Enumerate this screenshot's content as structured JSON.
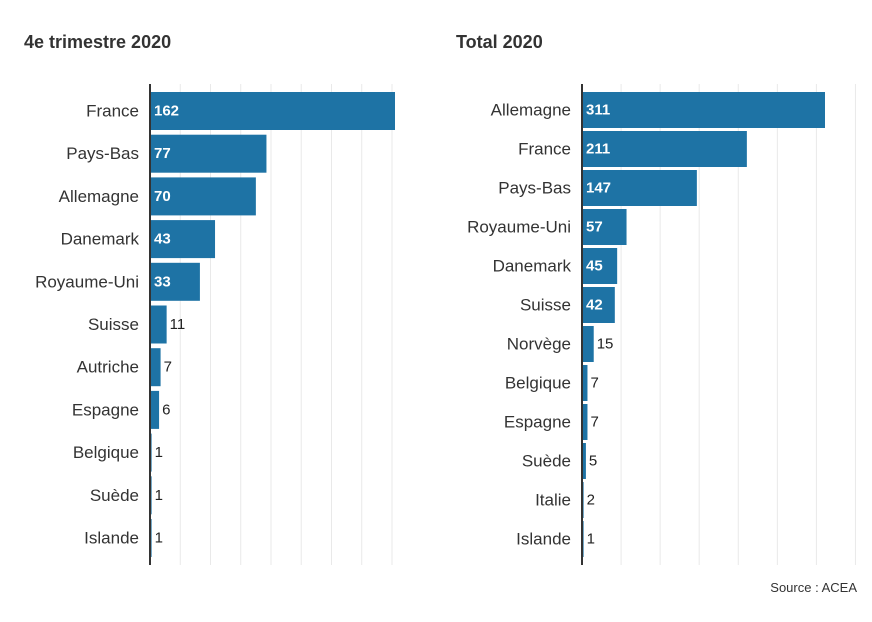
{
  "source": "Source : ACEA",
  "bar_color": "#1e73a5",
  "chart_data": [
    {
      "type": "bar",
      "orientation": "horizontal",
      "title": "4e trimestre 2020",
      "categories": [
        "France",
        "Pays-Bas",
        "Allemagne",
        "Danemark",
        "Royaume-Uni",
        "Suisse",
        "Autriche",
        "Espagne",
        "Belgique",
        "Suède",
        "Islande"
      ],
      "values": [
        162,
        77,
        70,
        43,
        33,
        11,
        7,
        6,
        1,
        1,
        1
      ],
      "xlim": [
        0,
        160
      ],
      "grid": true
    },
    {
      "type": "bar",
      "orientation": "horizontal",
      "title": "Total 2020",
      "categories": [
        "Allemagne",
        "France",
        "Pays-Bas",
        "Royaume-Uni",
        "Danemark",
        "Suisse",
        "Norvège",
        "Belgique",
        "Espagne",
        "Suède",
        "Italie",
        "Islande"
      ],
      "values": [
        311,
        211,
        147,
        57,
        45,
        42,
        15,
        7,
        7,
        5,
        2,
        1
      ],
      "xlim": [
        0,
        350
      ],
      "grid": true
    }
  ]
}
